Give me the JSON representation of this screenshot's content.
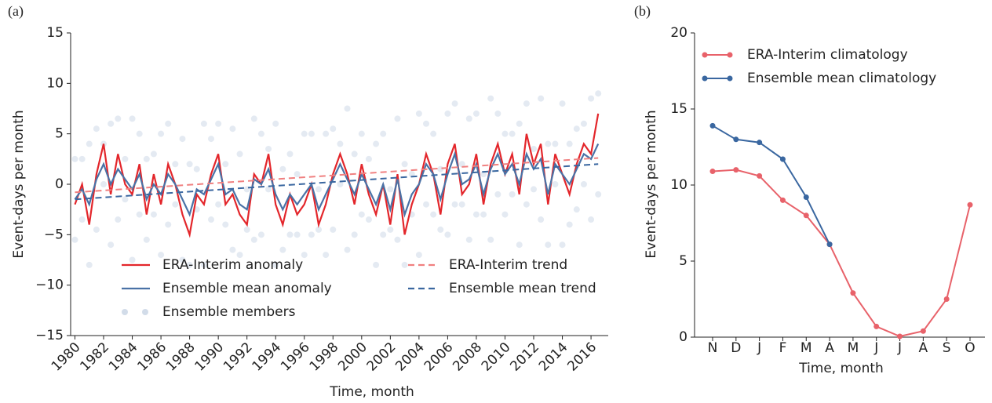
{
  "chart_data": [
    {
      "type": "line",
      "panel_label": "(a)",
      "ylabel": "Event-days per month",
      "xlabel": "Time, month",
      "xlim": [
        1979.7,
        2017.2
      ],
      "xticks": [
        1980,
        1982,
        1984,
        1986,
        1988,
        1990,
        1992,
        1994,
        1996,
        1998,
        2000,
        2002,
        2004,
        2006,
        2008,
        2010,
        2012,
        2014,
        2016
      ],
      "ylim": [
        -15,
        15
      ],
      "yticks": [
        {
          "value": -15,
          "label": "−15"
        },
        {
          "value": -10,
          "label": "−10"
        },
        {
          "value": -5,
          "label": "−5"
        },
        0,
        5,
        10,
        15
      ],
      "series": [
        {
          "name": "Ensemble members",
          "color": "#4a72a6",
          "style": "scatter",
          "x": [
            1980,
            1980.5,
            1981,
            1981.5,
            1982,
            1982.5,
            1983,
            1983.5,
            1984,
            1984.5,
            1985,
            1985.5,
            1986,
            1986.5,
            1987,
            1987.5,
            1988,
            1988.5,
            1989,
            1989.5,
            1990,
            1990.5,
            1991,
            1991.5,
            1992,
            1992.5,
            1993,
            1993.5,
            1994,
            1994.5,
            1995,
            1995.5,
            1996,
            1996.5,
            1997,
            1997.5,
            1998,
            1998.5,
            1999,
            1999.5,
            2000,
            2000.5,
            2001,
            2001.5,
            2002,
            2002.5,
            2003,
            2003.5,
            2004,
            2004.5,
            2005,
            2005.5,
            2006,
            2006.5,
            2007,
            2007.5,
            2008,
            2008.5,
            2009,
            2009.5,
            2010,
            2010.5,
            2011,
            2011.5,
            2012,
            2012.5,
            2013,
            2013.5,
            2014,
            2014.5,
            2015,
            2015.5,
            2016,
            2016.5,
            1980,
            1980.5,
            1981,
            1981.5,
            1982,
            1982.5,
            1983,
            1983.5,
            1984,
            1984.5,
            1985,
            1985.5,
            1986,
            1986.5,
            1987,
            1987.5,
            1988,
            1988.5,
            1989,
            1989.5,
            1990,
            1990.5,
            1991,
            1991.5,
            1992,
            1992.5,
            1993,
            1993.5,
            1994,
            1994.5,
            1995,
            1995.5,
            1996,
            1996.5,
            1997,
            1997.5,
            1998,
            1998.5,
            1999,
            1999.5,
            2000,
            2000.5,
            2001,
            2001.5,
            2002,
            2002.5,
            2003,
            2003.5,
            2004,
            2004.5,
            2005,
            2005.5,
            2006,
            2006.5,
            2007,
            2007.5,
            2008,
            2008.5,
            2009,
            2009.5,
            2010,
            2010.5,
            2011,
            2011.5,
            2012,
            2012.5,
            2013,
            2013.5,
            2014,
            2014.5,
            2015,
            2015.5,
            2016,
            2016.5
          ],
          "values": [
            2.5,
            -3.5,
            4,
            -4.5,
            4,
            -6,
            6.5,
            -1.5,
            6.5,
            -3,
            2.5,
            -3,
            5,
            -4,
            2,
            -7.5,
            2,
            -2.5,
            6,
            -3.5,
            6,
            -4,
            5.5,
            -7,
            -0.5,
            -5.5,
            5,
            -0.5,
            6,
            -6.5,
            3,
            -5,
            5,
            -5,
            -0.5,
            -7,
            5.5,
            0,
            7.5,
            -5,
            5,
            -3.5,
            4,
            -5,
            -0.5,
            -5.5,
            2,
            -3,
            7,
            -2,
            5,
            -4.5,
            7,
            -2,
            2,
            -5.5,
            7,
            -3,
            8.5,
            -1,
            5,
            -1,
            6,
            -2,
            3.5,
            -3.5,
            4,
            0,
            8,
            -4,
            5.5,
            0,
            8.5,
            -1,
            -5.5,
            2.5,
            -8,
            5.5,
            0,
            6,
            -3.5,
            2.5,
            -7.5,
            5,
            -5.5,
            3,
            -7,
            6,
            -2,
            4.5,
            -8,
            1.5,
            -8,
            4.5,
            -2,
            2,
            -6.5,
            3,
            -4.5,
            6.5,
            -5,
            3.5,
            -8,
            1.5,
            -5,
            1,
            -7,
            5,
            -4.5,
            5,
            -4.5,
            4,
            -6.5,
            3,
            -3,
            2.5,
            -8,
            5,
            -4.5,
            6.5,
            -8,
            1,
            -7,
            6,
            -3,
            1.5,
            -5,
            8,
            -2,
            6.5,
            -3,
            1,
            -5.5,
            7,
            -3,
            5,
            -6,
            8,
            -0.5,
            8.5,
            -6,
            4,
            -6,
            4,
            -2.5,
            6,
            -3.5,
            9
          ]
        },
        {
          "name": "ERA-Interim anomaly",
          "color": "#e3262b",
          "style": "solid",
          "x": [
            1980,
            1980.5,
            1981,
            1981.5,
            1982,
            1982.5,
            1983,
            1983.5,
            1984,
            1984.5,
            1985,
            1985.5,
            1986,
            1986.5,
            1987,
            1987.5,
            1988,
            1988.5,
            1989,
            1989.5,
            1990,
            1990.5,
            1991,
            1991.5,
            1992,
            1992.5,
            1993,
            1993.5,
            1994,
            1994.5,
            1995,
            1995.5,
            1996,
            1996.5,
            1997,
            1997.5,
            1998,
            1998.5,
            1999,
            1999.5,
            2000,
            2000.5,
            2001,
            2001.5,
            2002,
            2002.5,
            2003,
            2003.5,
            2004,
            2004.5,
            2005,
            2005.5,
            2006,
            2006.5,
            2007,
            2007.5,
            2008,
            2008.5,
            2009,
            2009.5,
            2010,
            2010.5,
            2011,
            2011.5,
            2012,
            2012.5,
            2013,
            2013.5,
            2014,
            2014.5,
            2015,
            2015.5,
            2016,
            2016.5
          ],
          "values": [
            -2,
            0,
            -4,
            1,
            4,
            -1,
            3,
            0,
            -1,
            2,
            -3,
            1,
            -2,
            2,
            0,
            -3,
            -5,
            -1,
            -2,
            1,
            3,
            -2,
            -1,
            -3,
            -4,
            1,
            0,
            3,
            -2,
            -4,
            -1,
            -3,
            -2,
            0,
            -4,
            -2,
            1,
            3,
            1,
            -2,
            2,
            -1,
            -3,
            0,
            -4,
            1,
            -5,
            -2,
            0,
            3,
            1,
            -3,
            2,
            4,
            -1,
            0,
            3,
            -2,
            2,
            4,
            1,
            3,
            -1,
            5,
            2,
            4,
            -2,
            3,
            1,
            -1,
            2,
            4,
            3,
            7
          ]
        },
        {
          "name": "Ensemble mean anomaly",
          "color": "#4a72a6",
          "style": "solid",
          "x": [
            1980,
            1980.5,
            1981,
            1981.5,
            1982,
            1982.5,
            1983,
            1983.5,
            1984,
            1984.5,
            1985,
            1985.5,
            1986,
            1986.5,
            1987,
            1987.5,
            1988,
            1988.5,
            1989,
            1989.5,
            1990,
            1990.5,
            1991,
            1991.5,
            1992,
            1992.5,
            1993,
            1993.5,
            1994,
            1994.5,
            1995,
            1995.5,
            1996,
            1996.5,
            1997,
            1997.5,
            1998,
            1998.5,
            1999,
            1999.5,
            2000,
            2000.5,
            2001,
            2001.5,
            2002,
            2002.5,
            2003,
            2003.5,
            2004,
            2004.5,
            2005,
            2005.5,
            2006,
            2006.5,
            2007,
            2007.5,
            2008,
            2008.5,
            2009,
            2009.5,
            2010,
            2010.5,
            2011,
            2011.5,
            2012,
            2012.5,
            2013,
            2013.5,
            2014,
            2014.5,
            2015,
            2015.5,
            2016,
            2016.5
          ],
          "values": [
            -1.5,
            -0.5,
            -2,
            0.5,
            2,
            0,
            1.5,
            0.5,
            -0.5,
            1,
            -1.5,
            0,
            -1,
            1,
            0,
            -1.5,
            -3,
            -0.5,
            -1,
            0.5,
            2,
            -1,
            -0.5,
            -2,
            -2.5,
            0.5,
            0,
            1.5,
            -1,
            -2.5,
            -1,
            -2,
            -1,
            0,
            -2.5,
            -1,
            0.5,
            2,
            0.5,
            -1,
            1,
            -0.5,
            -2,
            0,
            -2.5,
            0.5,
            -3,
            -1,
            0,
            2,
            1,
            -1.5,
            1,
            3,
            0,
            0.5,
            2,
            -1,
            1.5,
            3,
            1,
            2,
            0,
            3,
            1.5,
            2.5,
            -1,
            2,
            1,
            0,
            1.5,
            3,
            2.5,
            4
          ]
        },
        {
          "name": "ERA-Interim trend",
          "color": "#f08080",
          "style": "dashed",
          "x": [
            1980,
            2016.5
          ],
          "values": [
            -0.8,
            2.6
          ]
        },
        {
          "name": "Ensemble mean trend",
          "color": "#3a67a0",
          "style": "dashed",
          "x": [
            1980,
            2016.5
          ],
          "values": [
            -1.5,
            2.0
          ]
        }
      ]
    },
    {
      "type": "line",
      "panel_label": "(b)",
      "ylabel": "Event-days per month",
      "xlabel": "Time, month",
      "categories": [
        "N",
        "D",
        "J",
        "F",
        "M",
        "A",
        "M",
        "J",
        "J",
        "A",
        "S",
        "O"
      ],
      "ylim": [
        0,
        20
      ],
      "yticks": [
        0,
        5,
        10,
        15,
        20
      ],
      "series": [
        {
          "name": "ERA-Interim climatology",
          "color": "#e8626a",
          "values": [
            10.9,
            11.0,
            10.6,
            9.0,
            8.0,
            6.1,
            2.9,
            0.7,
            0.05,
            0.4,
            2.5,
            8.7
          ]
        },
        {
          "name": "Ensemble mean climatology",
          "color": "#3a67a0",
          "values": [
            13.9,
            13.0,
            12.8,
            11.7,
            9.2,
            6.1,
            null,
            null,
            null,
            null,
            null,
            null
          ]
        }
      ]
    }
  ]
}
